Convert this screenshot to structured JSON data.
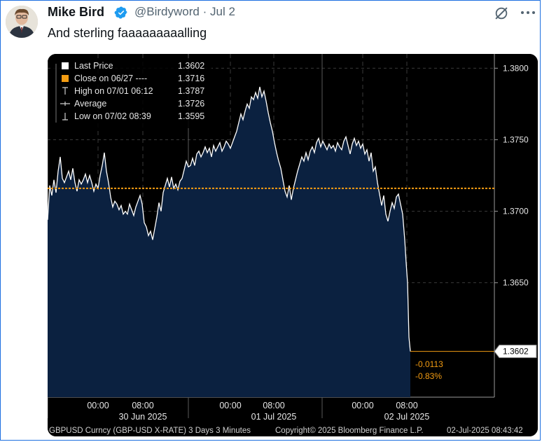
{
  "tweet": {
    "author_name": "Mike Bird",
    "handle": "@Birdyword",
    "separator": "·",
    "date": "Jul 2",
    "text": "And sterling faaaaaaaaalling",
    "icons": [
      "verified-badge-icon",
      "grok-icon",
      "more-icon"
    ]
  },
  "chart": {
    "legend": [
      {
        "label": "Last Price",
        "value": "1.3602"
      },
      {
        "label": "Close on 06/27 ----",
        "value": "1.3716"
      },
      {
        "label": "High on 07/01 06:12",
        "value": "1.3787"
      },
      {
        "label": "Average",
        "value": "1.3726"
      },
      {
        "label": "Low on 07/02 08:39",
        "value": "1.3595"
      }
    ],
    "last_price_tag": "1.3602",
    "change_abs": "-0.0113",
    "change_pct": "-0.83%",
    "footer_left": "GBPUSD Curncy (GBP-USD X-RATE) 3 Days 3 Minutes",
    "footer_mid": "Copyright© 2025 Bloomberg Finance L.P.",
    "footer_right": "02-Jul-2025 08:43:42",
    "colors": {
      "area": "#0b2140",
      "line": "#ffffff",
      "close_line": "#f39c12",
      "background": "#000000"
    }
  },
  "chart_data": {
    "type": "area",
    "title": "",
    "xlabel": "",
    "ylabel": "",
    "ylim": [
      1.357,
      1.381
    ],
    "y_ticks": [
      "1.3800",
      "1.3750",
      "1.3700",
      "1.3650"
    ],
    "x_tick_labels": [
      {
        "time": "00:00",
        "day": "30 Jun 2025"
      },
      {
        "time": "08:00",
        "day": ""
      },
      {
        "time": "00:00",
        "day": "01 Jul 2025"
      },
      {
        "time": "08:00",
        "day": ""
      },
      {
        "time": "00:00",
        "day": "02 Jul 2025"
      },
      {
        "time": "08:00",
        "day": ""
      }
    ],
    "reference_line": {
      "name": "Close on 06/27",
      "value": 1.3716
    },
    "series": [
      {
        "name": "Last Price",
        "points": [
          [
            0,
            1.3694
          ],
          [
            3,
            1.3718
          ],
          [
            6,
            1.3711
          ],
          [
            9,
            1.3722
          ],
          [
            12,
            1.3713
          ],
          [
            15,
            1.3728
          ],
          [
            18,
            1.3738
          ],
          [
            21,
            1.3723
          ],
          [
            24,
            1.372
          ],
          [
            27,
            1.3724
          ],
          [
            30,
            1.3728
          ],
          [
            33,
            1.3722
          ],
          [
            36,
            1.373
          ],
          [
            39,
            1.372
          ],
          [
            42,
            1.3714
          ],
          [
            45,
            1.3722
          ],
          [
            48,
            1.3719
          ],
          [
            51,
            1.3722
          ],
          [
            54,
            1.3726
          ],
          [
            57,
            1.372
          ],
          [
            60,
            1.3725
          ],
          [
            63,
            1.372
          ],
          [
            66,
            1.3714
          ],
          [
            69,
            1.3719
          ],
          [
            72,
            1.3716
          ],
          [
            75,
            1.3725
          ],
          [
            78,
            1.3732
          ],
          [
            81,
            1.3741
          ],
          [
            84,
            1.3728
          ],
          [
            87,
            1.372
          ],
          [
            90,
            1.371
          ],
          [
            93,
            1.3703
          ],
          [
            96,
            1.3707
          ],
          [
            99,
            1.3705
          ],
          [
            102,
            1.3701
          ],
          [
            105,
            1.3704
          ],
          [
            108,
            1.3698
          ],
          [
            111,
            1.37
          ],
          [
            114,
            1.3698
          ],
          [
            117,
            1.3705
          ],
          [
            120,
            1.3701
          ],
          [
            123,
            1.3697
          ],
          [
            126,
            1.3703
          ],
          [
            129,
            1.3707
          ],
          [
            132,
            1.3711
          ],
          [
            135,
            1.3705
          ],
          [
            138,
            1.3692
          ],
          [
            141,
            1.3689
          ],
          [
            144,
            1.3683
          ],
          [
            147,
            1.3686
          ],
          [
            150,
            1.368
          ],
          [
            153,
            1.3688
          ],
          [
            156,
            1.3696
          ],
          [
            159,
            1.3706
          ],
          [
            162,
            1.37
          ],
          [
            165,
            1.3713
          ],
          [
            168,
            1.3718
          ],
          [
            171,
            1.3723
          ],
          [
            174,
            1.3717
          ],
          [
            177,
            1.3724
          ],
          [
            180,
            1.3716
          ],
          [
            183,
            1.3719
          ],
          [
            186,
            1.3715
          ],
          [
            189,
            1.3721
          ],
          [
            192,
            1.3723
          ],
          [
            195,
            1.3729
          ],
          [
            198,
            1.3735
          ],
          [
            201,
            1.3731
          ],
          [
            204,
            1.3732
          ],
          [
            207,
            1.3737
          ],
          [
            210,
            1.3732
          ],
          [
            213,
            1.374
          ],
          [
            216,
            1.3742
          ],
          [
            219,
            1.3738
          ],
          [
            222,
            1.3741
          ],
          [
            225,
            1.3745
          ],
          [
            228,
            1.3741
          ],
          [
            231,
            1.3744
          ],
          [
            234,
            1.3738
          ],
          [
            237,
            1.3746
          ],
          [
            240,
            1.3742
          ],
          [
            243,
            1.3745
          ],
          [
            246,
            1.3748
          ],
          [
            249,
            1.3742
          ],
          [
            252,
            1.3745
          ],
          [
            255,
            1.3749
          ],
          [
            258,
            1.3747
          ],
          [
            261,
            1.3744
          ],
          [
            264,
            1.3748
          ],
          [
            267,
            1.3752
          ],
          [
            270,
            1.3756
          ],
          [
            273,
            1.3762
          ],
          [
            276,
            1.3768
          ],
          [
            279,
            1.3764
          ],
          [
            282,
            1.377
          ],
          [
            285,
            1.3775
          ],
          [
            288,
            1.3772
          ],
          [
            291,
            1.378
          ],
          [
            294,
            1.3778
          ],
          [
            297,
            1.3783
          ],
          [
            300,
            1.3779
          ],
          [
            303,
            1.3787
          ],
          [
            306,
            1.378
          ],
          [
            309,
            1.3784
          ],
          [
            312,
            1.3777
          ],
          [
            315,
            1.3769
          ],
          [
            318,
            1.3762
          ],
          [
            321,
            1.3756
          ],
          [
            324,
            1.3748
          ],
          [
            327,
            1.3741
          ],
          [
            330,
            1.3735
          ],
          [
            333,
            1.373
          ],
          [
            336,
            1.3722
          ],
          [
            339,
            1.3714
          ],
          [
            342,
            1.371
          ],
          [
            345,
            1.3718
          ],
          [
            348,
            1.3708
          ],
          [
            351,
            1.3716
          ],
          [
            354,
            1.3722
          ],
          [
            357,
            1.3728
          ],
          [
            360,
            1.3733
          ],
          [
            363,
            1.3738
          ],
          [
            366,
            1.3735
          ],
          [
            369,
            1.3741
          ],
          [
            372,
            1.3736
          ],
          [
            375,
            1.3742
          ],
          [
            378,
            1.3745
          ],
          [
            381,
            1.3741
          ],
          [
            384,
            1.3748
          ],
          [
            387,
            1.3751
          ],
          [
            390,
            1.3745
          ],
          [
            393,
            1.3749
          ],
          [
            396,
            1.3746
          ],
          [
            399,
            1.3743
          ],
          [
            402,
            1.3747
          ],
          [
            405,
            1.3744
          ],
          [
            408,
            1.3746
          ],
          [
            411,
            1.3742
          ],
          [
            414,
            1.3748
          ],
          [
            417,
            1.3745
          ],
          [
            420,
            1.3743
          ],
          [
            423,
            1.3749
          ],
          [
            426,
            1.3752
          ],
          [
            429,
            1.3746
          ],
          [
            432,
            1.374
          ],
          [
            435,
            1.3747
          ],
          [
            438,
            1.3751
          ],
          [
            441,
            1.3746
          ],
          [
            444,
            1.3749
          ],
          [
            447,
            1.3744
          ],
          [
            450,
            1.3747
          ],
          [
            453,
            1.374
          ],
          [
            456,
            1.3743
          ],
          [
            459,
            1.3735
          ],
          [
            462,
            1.3741
          ],
          [
            465,
            1.3728
          ],
          [
            468,
            1.3731
          ],
          [
            471,
            1.372
          ],
          [
            474,
            1.3712
          ],
          [
            477,
            1.3704
          ],
          [
            480,
            1.3711
          ],
          [
            483,
            1.3698
          ],
          [
            486,
            1.3693
          ],
          [
            489,
            1.37
          ],
          [
            492,
            1.3706
          ],
          [
            495,
            1.3702
          ],
          [
            498,
            1.371
          ],
          [
            501,
            1.3712
          ],
          [
            504,
            1.3705
          ],
          [
            507,
            1.3698
          ],
          [
            510,
            1.368
          ],
          [
            512,
            1.3664
          ],
          [
            514,
            1.365
          ],
          [
            516,
            1.3612
          ],
          [
            518,
            1.3602
          ]
        ]
      }
    ]
  }
}
